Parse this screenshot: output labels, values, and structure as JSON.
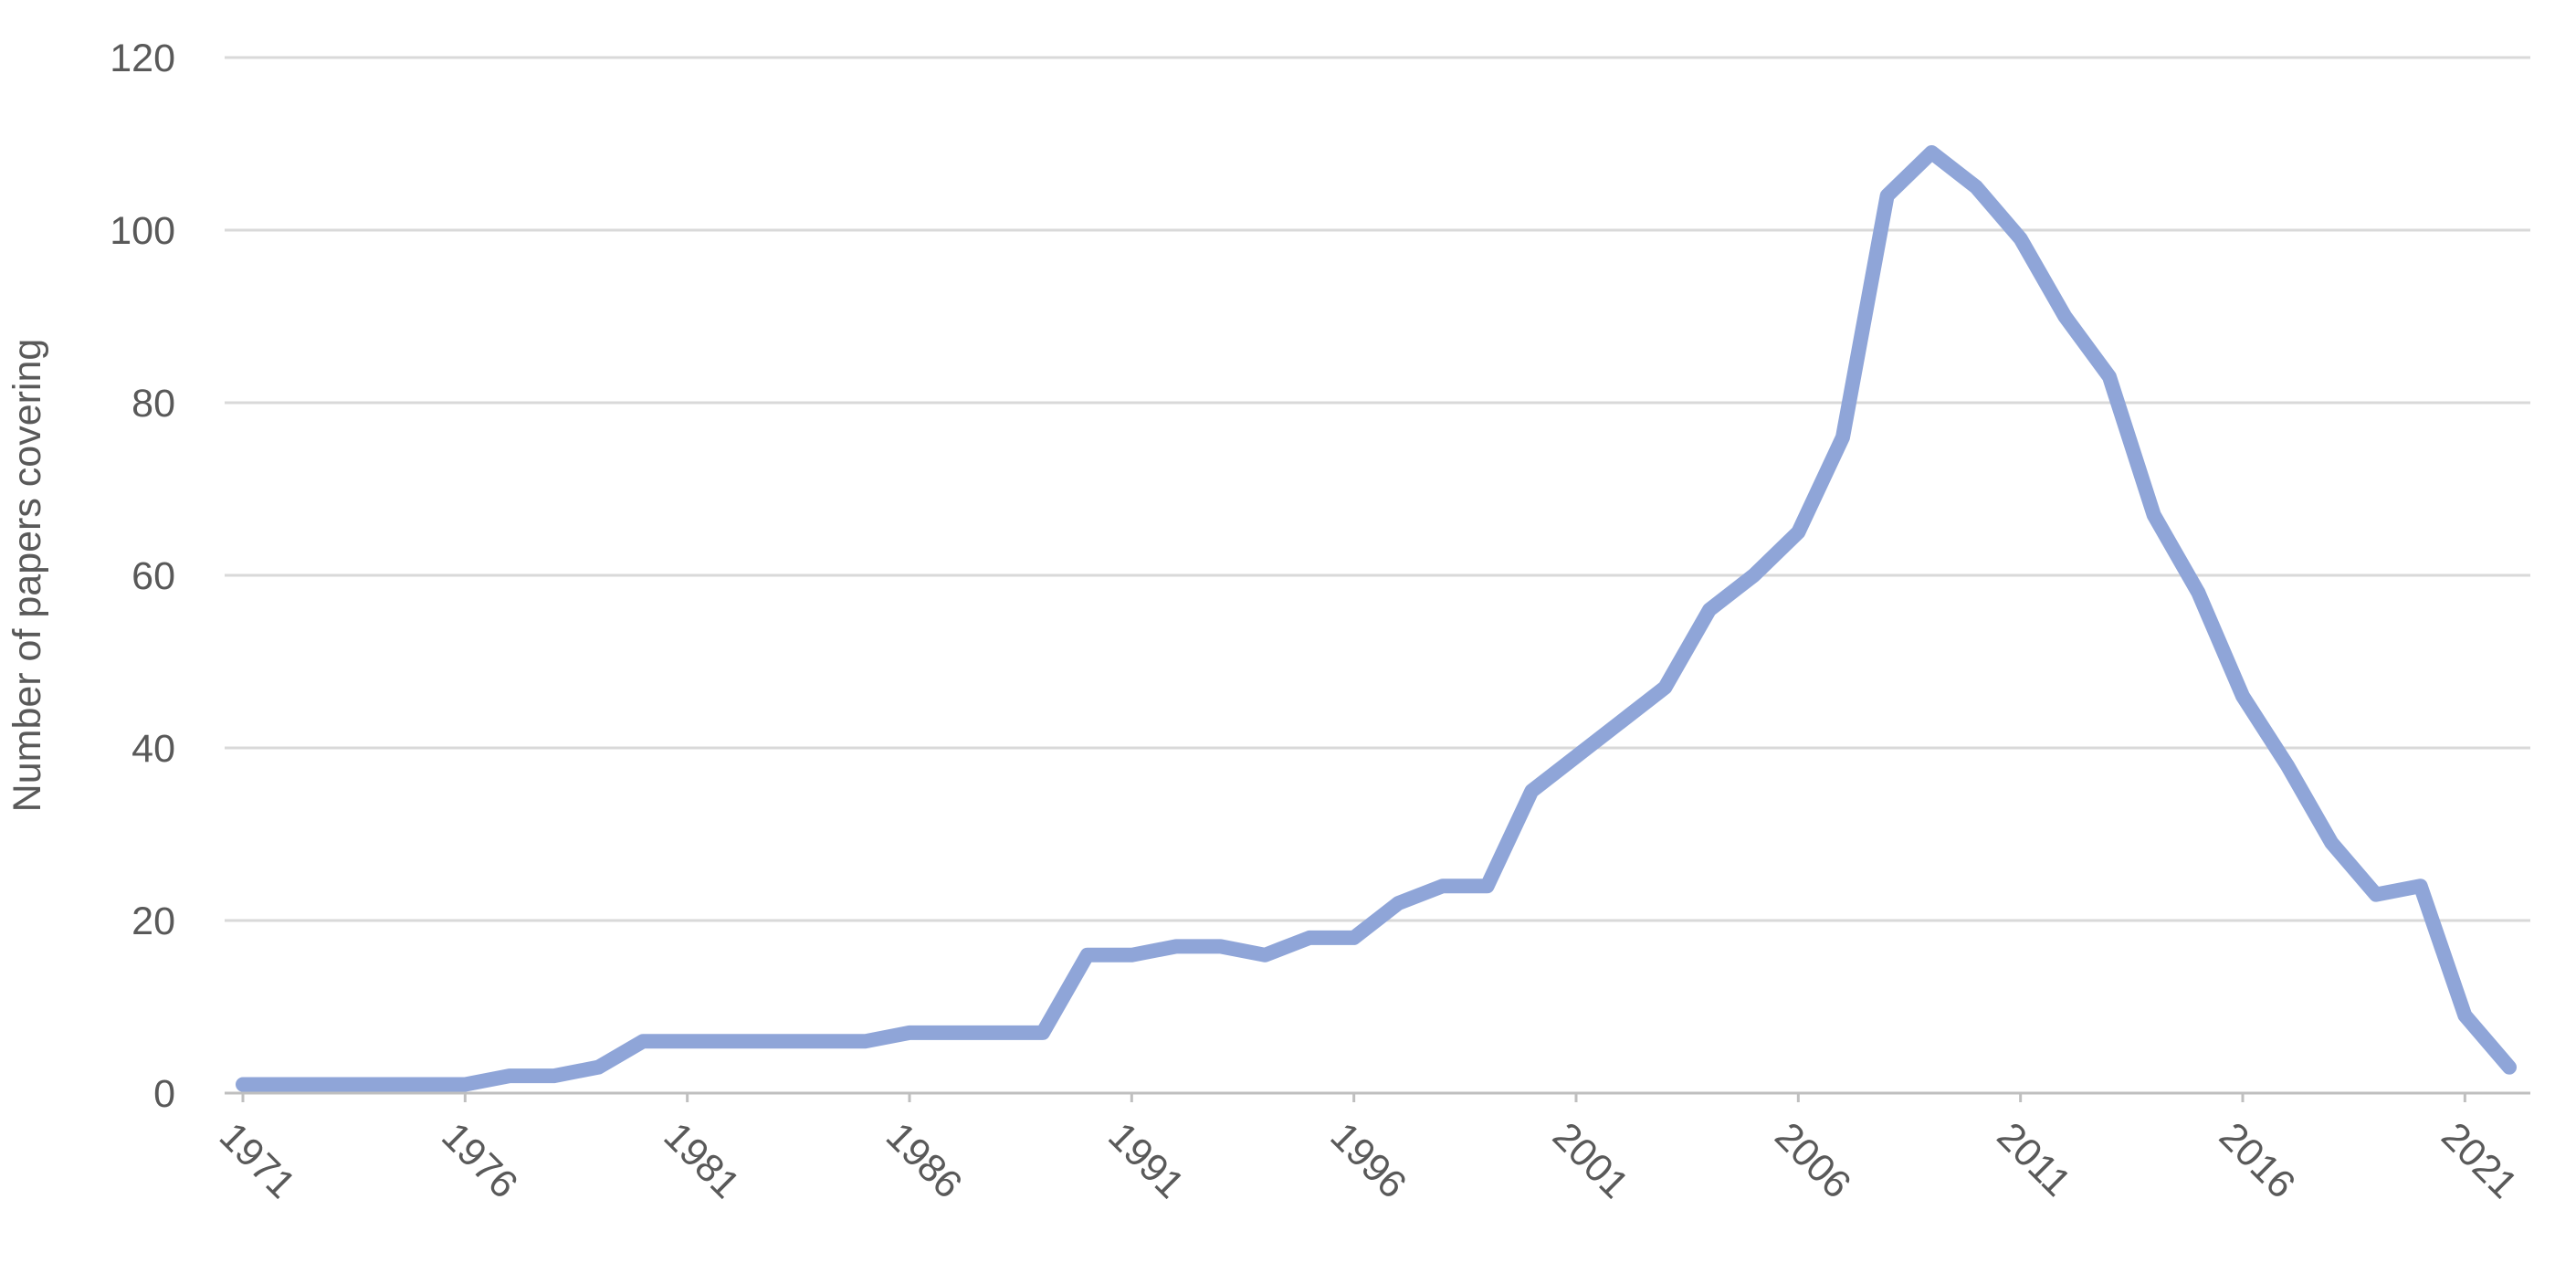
{
  "chart_data": {
    "type": "line",
    "y_label": "Number of papers covering",
    "x": [
      1971,
      1972,
      1973,
      1974,
      1975,
      1976,
      1977,
      1978,
      1979,
      1980,
      1981,
      1982,
      1983,
      1984,
      1985,
      1986,
      1987,
      1988,
      1989,
      1990,
      1991,
      1992,
      1993,
      1994,
      1995,
      1996,
      1997,
      1998,
      1999,
      2000,
      2001,
      2002,
      2003,
      2004,
      2005,
      2006,
      2007,
      2008,
      2009,
      2010,
      2011,
      2012,
      2013,
      2014,
      2015,
      2016,
      2017,
      2018,
      2019,
      2020,
      2021,
      2022
    ],
    "values": [
      1,
      1,
      1,
      1,
      1,
      1,
      2,
      2,
      3,
      6,
      6,
      6,
      6,
      6,
      6,
      7,
      7,
      7,
      7,
      16,
      16,
      17,
      17,
      16,
      18,
      18,
      22,
      24,
      24,
      35,
      39,
      43,
      47,
      56,
      60,
      65,
      76,
      104,
      109,
      105,
      99,
      90,
      83,
      67,
      58,
      46,
      38,
      29,
      23,
      24,
      9,
      3
    ],
    "color": "#8fa5d8",
    "xlim": [
      1971,
      2022
    ],
    "xticks": [
      1971,
      1976,
      1981,
      1986,
      1991,
      1996,
      2001,
      2006,
      2011,
      2016,
      2021
    ],
    "ylim": [
      0,
      120
    ],
    "yticks": [
      0,
      20,
      40,
      60,
      80,
      100,
      120
    ],
    "grid": true
  }
}
